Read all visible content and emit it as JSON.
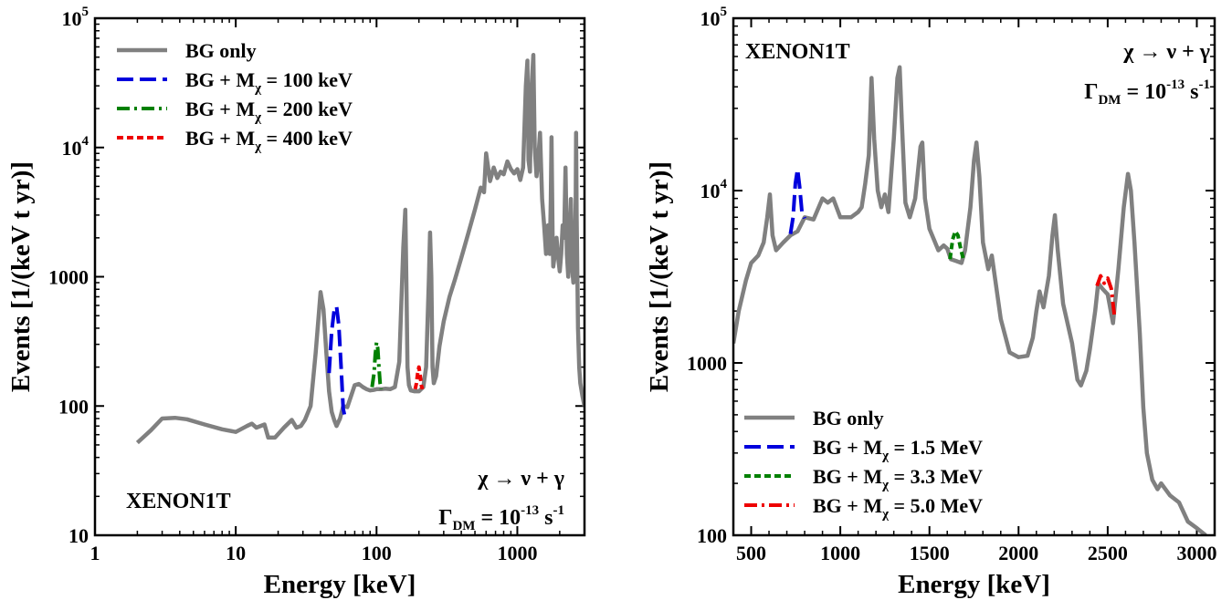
{
  "chart_data": [
    {
      "type": "line",
      "xscale": "log",
      "yscale": "log",
      "xlim": [
        1,
        3000
      ],
      "ylim": [
        10,
        100000
      ],
      "xlabel": "Energy [keV]",
      "ylabel": "Events [1/(keV  t  yr)]",
      "xticks": [
        "1",
        "10",
        "100",
        "1000"
      ],
      "yticks": [
        "10",
        "100",
        "1000",
        "10^4",
        "10^5"
      ],
      "legend": "top-left",
      "annotations": {
        "experiment": "XENON1T",
        "decay": "χ → ν + γ",
        "rate_symbol": "Γ",
        "rate_sub": "DM",
        "rate_eq": " = 10",
        "rate_exp": "-13",
        "rate_unit": " s",
        "rate_unit_exp": "-1"
      },
      "series": [
        {
          "name": "BG only",
          "legend_prefix": "BG only",
          "legend_sub": "",
          "legend_suffix": "",
          "color": "#808080",
          "dash": "solid",
          "x": [
            2,
            2.5,
            3,
            3.7,
            4.5,
            6,
            8,
            10,
            12,
            13,
            14,
            16,
            17,
            19,
            22,
            25,
            27,
            29,
            31,
            34,
            37,
            40,
            42,
            44,
            46,
            48,
            50,
            52,
            55,
            58,
            62,
            66,
            70,
            75,
            80,
            85,
            90,
            95,
            100,
            108,
            115,
            125,
            135,
            145,
            155,
            160,
            163,
            166,
            170,
            175,
            185,
            200,
            215,
            225,
            235,
            240,
            245,
            250,
            255,
            265,
            280,
            300,
            330,
            360,
            400,
            450,
            500,
            550,
            580,
            600,
            640,
            680,
            720,
            760,
            800,
            850,
            900,
            950,
            1000,
            1050,
            1100,
            1150,
            1180,
            1200,
            1230,
            1260,
            1300,
            1330,
            1370,
            1400,
            1450,
            1500,
            1550,
            1600,
            1650,
            1700,
            1730,
            1750,
            1780,
            1800,
            1850,
            1900,
            1950,
            2000,
            2050,
            2100,
            2150,
            2200,
            2230,
            2250,
            2300,
            2400,
            2450,
            2500,
            2550,
            2600,
            2615,
            2640,
            2700,
            2750,
            2800,
            2900,
            3000
          ],
          "y": [
            52,
            65,
            80,
            81,
            79,
            72,
            66,
            63,
            70,
            73,
            68,
            72,
            57,
            57,
            68,
            78,
            68,
            70,
            78,
            100,
            260,
            760,
            560,
            260,
            130,
            90,
            78,
            70,
            80,
            100,
            98,
            120,
            145,
            148,
            140,
            135,
            132,
            133,
            135,
            135,
            136,
            135,
            140,
            220,
            1700,
            3300,
            900,
            200,
            145,
            132,
            130,
            130,
            140,
            200,
            900,
            2200,
            1000,
            200,
            150,
            170,
            290,
            450,
            700,
            950,
            1400,
            2200,
            3300,
            4900,
            4500,
            9000,
            5500,
            7000,
            5800,
            6500,
            6200,
            7800,
            6800,
            6300,
            6800,
            5600,
            7000,
            30000,
            47000,
            8000,
            6500,
            28000,
            52000,
            10000,
            6000,
            7500,
            13000,
            4000,
            2500,
            1500,
            2500,
            1500,
            4000,
            12000,
            2000,
            1200,
            1500,
            2000,
            1400,
            1100,
            1500,
            2500,
            2000,
            7000,
            3000,
            1500,
            1000,
            4000,
            1200,
            900,
            1000,
            4000,
            13000,
            3000,
            400,
            200,
            150,
            120,
            100
          ]
        },
        {
          "name": "BG + Mχ = 100 keV",
          "legend_prefix": "BG +  M",
          "legend_sub": "χ",
          "legend_suffix": " = 100 keV",
          "color": "#0000dd",
          "dash": "18,7",
          "x": [
            46,
            48,
            50,
            52,
            54,
            56,
            58,
            60
          ],
          "y": [
            180,
            380,
            550,
            590,
            420,
            200,
            95,
            80
          ]
        },
        {
          "name": "BG + Mχ = 200 keV",
          "legend_prefix": "BG +  M",
          "legend_sub": "χ",
          "legend_suffix": " = 200 keV",
          "color": "#008000",
          "dash": "14,5,3,5",
          "x": [
            93,
            96,
            98,
            100,
            102,
            104,
            106,
            108
          ],
          "y": [
            140,
            180,
            250,
            310,
            280,
            200,
            150,
            135
          ]
        },
        {
          "name": "BG + Mχ = 400 keV",
          "legend_prefix": "BG +  M",
          "legend_sub": "χ",
          "legend_suffix": " = 400 keV",
          "color": "#ee0000",
          "dash": "7,4",
          "x": [
            188,
            192,
            196,
            200,
            204,
            208,
            212
          ],
          "y": [
            135,
            150,
            180,
            200,
            175,
            145,
            135
          ]
        }
      ]
    },
    {
      "type": "line",
      "xscale": "linear",
      "yscale": "log",
      "xlim": [
        400,
        3100
      ],
      "ylim": [
        100,
        100000
      ],
      "xlabel": "Energy [keV]",
      "ylabel": "Events [1/(keV t yr)]",
      "xticks": [
        "500",
        "1000",
        "1500",
        "2000",
        "2500",
        "3000"
      ],
      "yticks": [
        "100",
        "1000",
        "10^4",
        "10^5"
      ],
      "legend": "bottom-left",
      "annotations": {
        "experiment": "XENON1T",
        "decay": "χ → ν + γ",
        "rate_symbol": "Γ",
        "rate_sub": "DM",
        "rate_eq": " = 10",
        "rate_exp": "-13",
        "rate_unit": " s",
        "rate_unit_exp": "-1"
      },
      "series": [
        {
          "name": "BG only",
          "legend_prefix": "BG only",
          "legend_sub": "",
          "legend_suffix": "",
          "color": "#808080",
          "dash": "solid",
          "x": [
            400,
            430,
            470,
            500,
            540,
            570,
            590,
            605,
            620,
            640,
            680,
            720,
            760,
            800,
            850,
            900,
            930,
            960,
            1000,
            1060,
            1100,
            1120,
            1140,
            1160,
            1175,
            1190,
            1210,
            1230,
            1250,
            1270,
            1300,
            1320,
            1333,
            1345,
            1365,
            1390,
            1420,
            1450,
            1460,
            1475,
            1500,
            1550,
            1580,
            1600,
            1620,
            1650,
            1680,
            1700,
            1730,
            1750,
            1764,
            1780,
            1800,
            1830,
            1850,
            1870,
            1900,
            1950,
            2000,
            2050,
            2080,
            2100,
            2118,
            2140,
            2170,
            2190,
            2204,
            2220,
            2250,
            2300,
            2330,
            2350,
            2380,
            2400,
            2430,
            2447,
            2470,
            2500,
            2530,
            2560,
            2590,
            2614,
            2630,
            2650,
            2680,
            2700,
            2720,
            2750,
            2780,
            2800,
            2850,
            2900,
            2950,
            3000,
            3050
          ],
          "y": [
            1300,
            2000,
            3000,
            3800,
            4200,
            5000,
            7000,
            9500,
            5500,
            4500,
            5000,
            5500,
            5800,
            7000,
            6800,
            9000,
            8500,
            9000,
            7000,
            7000,
            7500,
            8000,
            11000,
            16000,
            45000,
            20000,
            10000,
            8000,
            9500,
            7500,
            20000,
            45000,
            52000,
            25000,
            8500,
            7000,
            9000,
            18000,
            19000,
            9000,
            6000,
            4500,
            4800,
            4600,
            4000,
            3900,
            3800,
            4500,
            8000,
            15000,
            19000,
            12000,
            5000,
            3500,
            4200,
            3000,
            1800,
            1150,
            1080,
            1100,
            1400,
            2000,
            2600,
            2100,
            3200,
            5500,
            7200,
            4500,
            2200,
            1300,
            800,
            740,
            900,
            1200,
            2000,
            2900,
            2700,
            2500,
            1700,
            3500,
            8000,
            12500,
            10000,
            5000,
            1500,
            550,
            300,
            210,
            185,
            200,
            170,
            155,
            120,
            110,
            100
          ]
        },
        {
          "name": "BG + Mχ = 1.5 MeV",
          "legend_prefix": "BG + M",
          "legend_sub": "χ",
          "legend_suffix": " = 1.5 MeV",
          "color": "#0000dd",
          "dash": "18,7",
          "x": [
            720,
            735,
            748,
            760,
            772,
            785,
            800
          ],
          "y": [
            5600,
            7000,
            11000,
            13300,
            10500,
            7500,
            6900
          ]
        },
        {
          "name": "BG + Mχ = 3.3 MeV",
          "legend_prefix": "BG + M",
          "legend_sub": "χ",
          "legend_suffix": " = 3.3 MeV",
          "color": "#008000",
          "dash": "7,4",
          "x": [
            1615,
            1630,
            1645,
            1660,
            1675,
            1690
          ],
          "y": [
            4000,
            5200,
            5800,
            5500,
            4600,
            4000
          ]
        },
        {
          "name": "BG + Mχ = 5.0 MeV",
          "legend_prefix": "BG + M",
          "legend_sub": "χ",
          "legend_suffix": " = 5.0 MeV",
          "color": "#ee0000",
          "dash": "14,5,3,5",
          "x": [
            2440,
            2460,
            2480,
            2500,
            2520,
            2540
          ],
          "y": [
            2800,
            3200,
            2900,
            3100,
            2700,
            1800
          ]
        }
      ]
    }
  ]
}
